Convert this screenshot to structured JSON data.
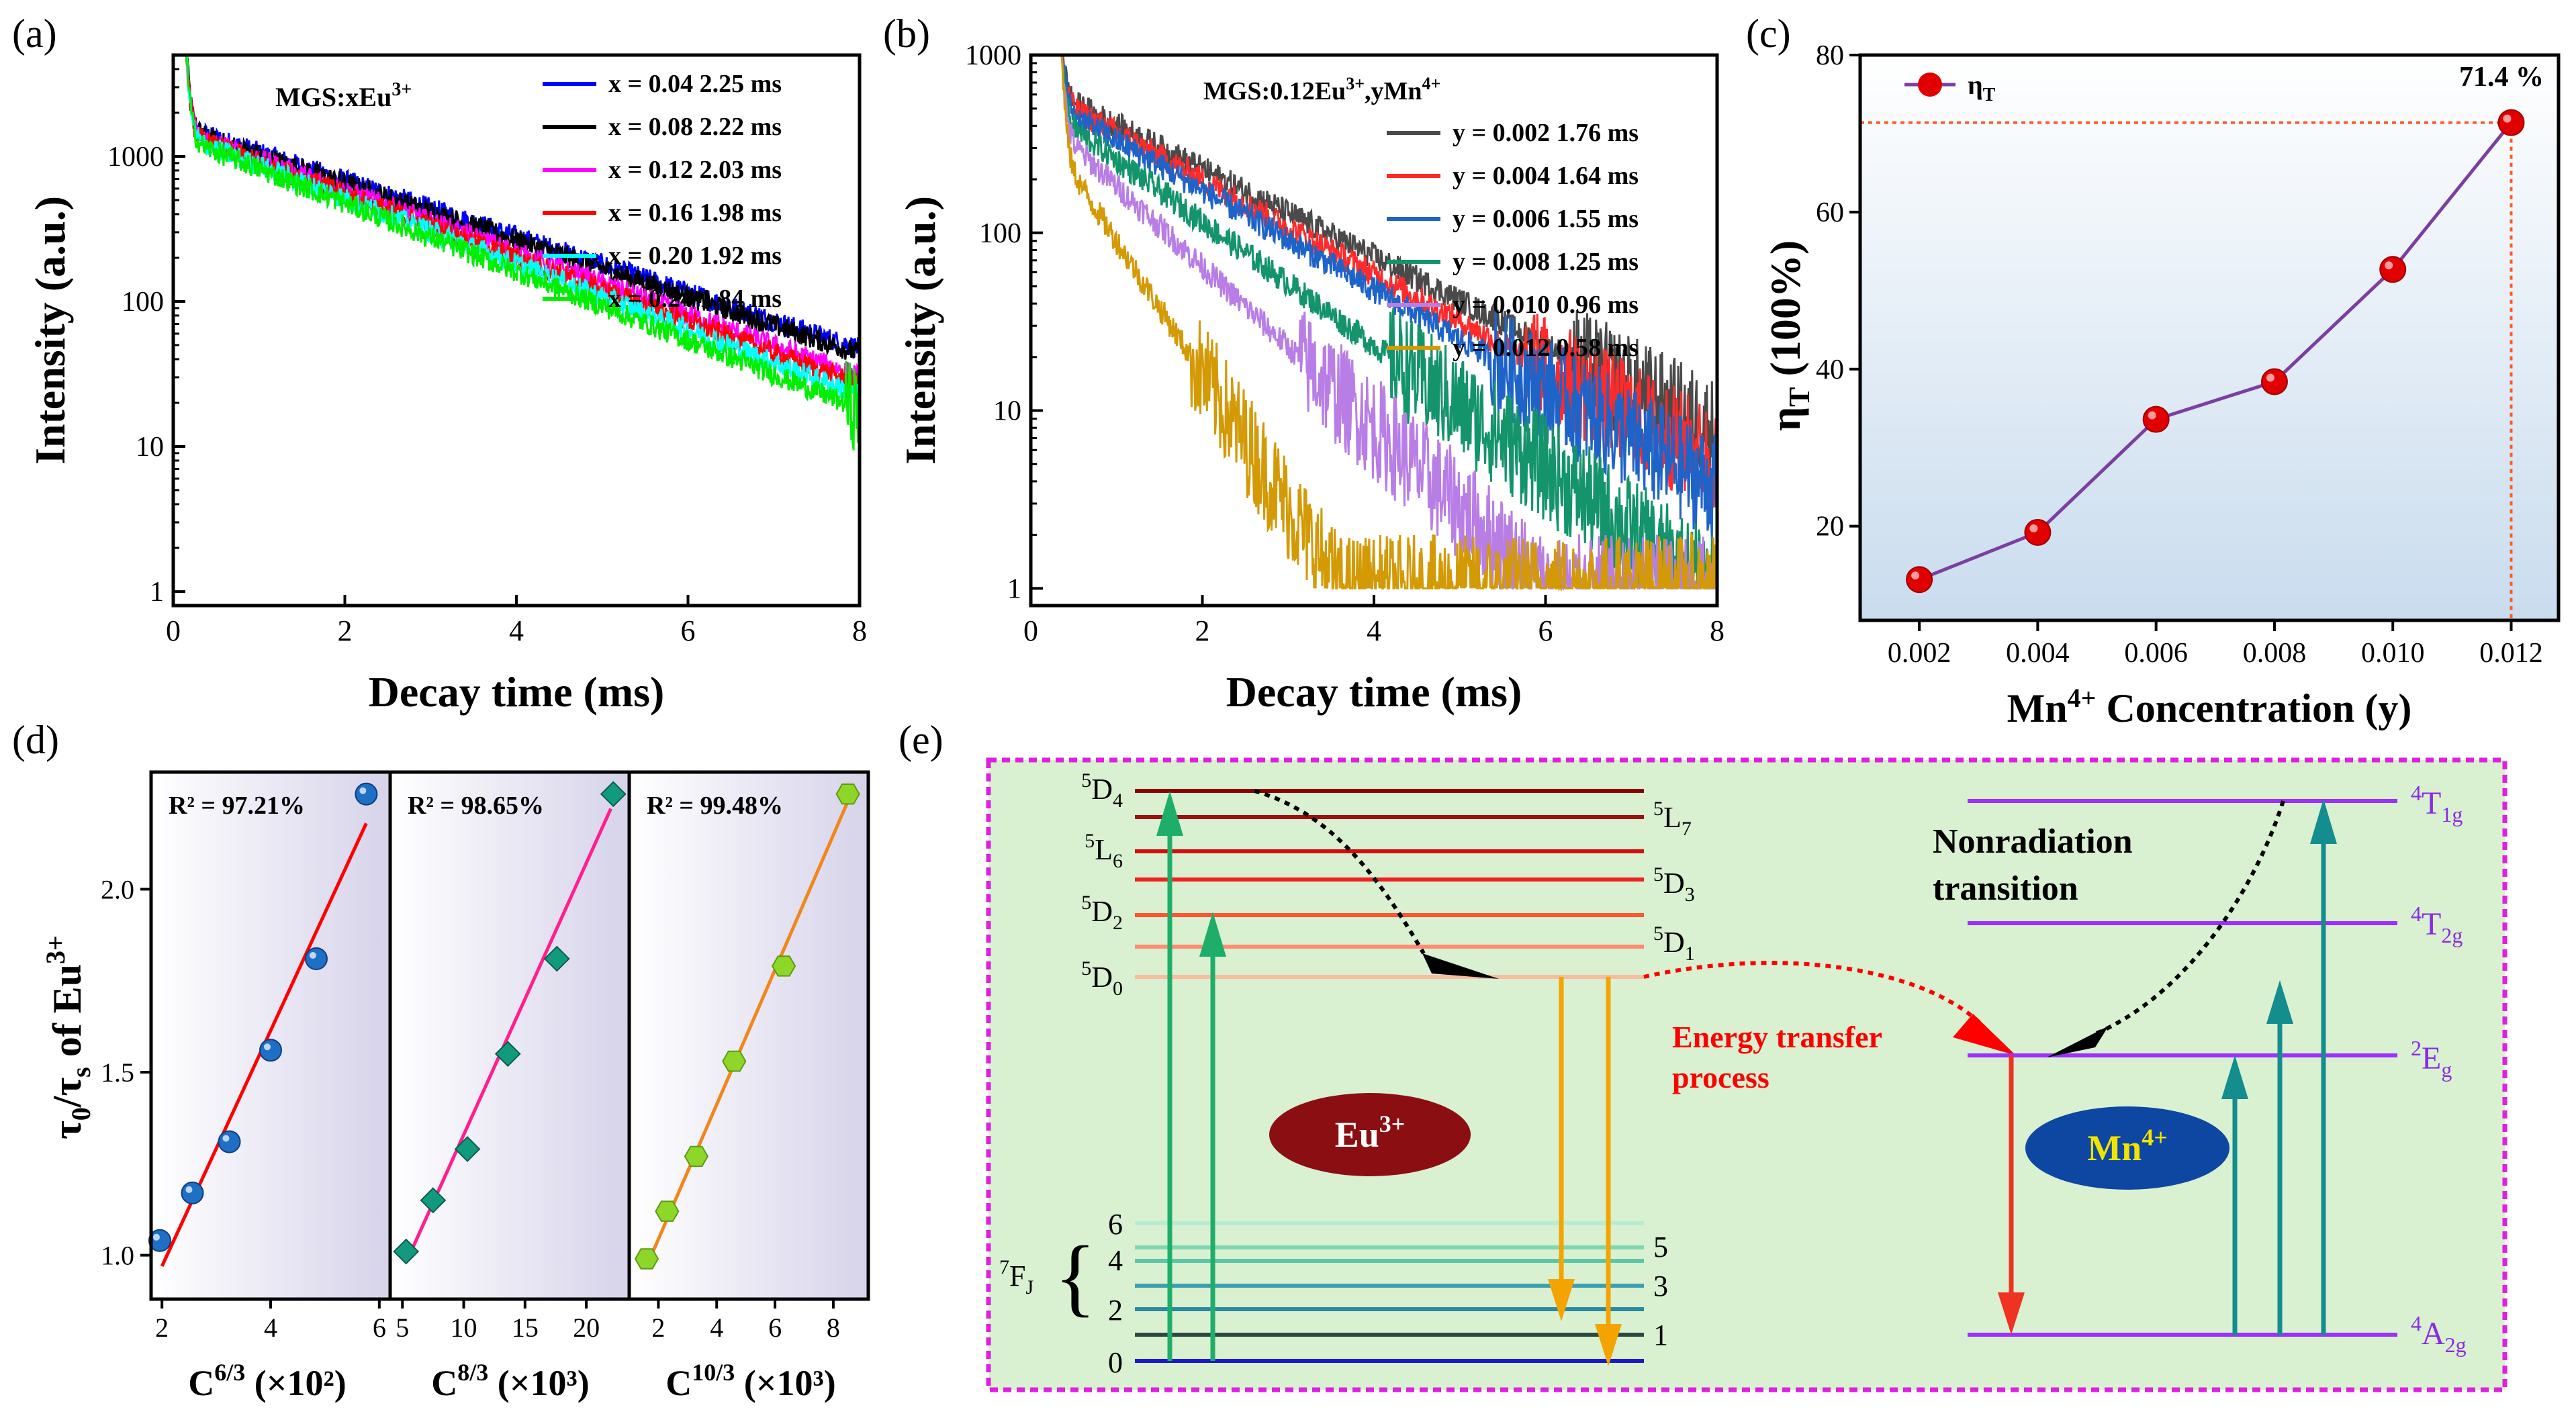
{
  "colors": {
    "eu_box": "#8b0f12",
    "mn_box": "#0d47a1",
    "dashed_border": "#e020e0",
    "panel_e_bg": "#d9f0d1",
    "panel_c_bg_top": "#ffffff",
    "panel_c_bg_bottom": "#cfe2f3",
    "purple_line": "#7b3fa0",
    "red_point": "#e00000",
    "orange_guide": "#ff5a1f",
    "green_arrow": "#1fae6a",
    "teal_arrow": "#138d8d",
    "orange_arrow": "#f4a400",
    "red_arrow": "#ee3322",
    "mn_level": "#9b30ff"
  },
  "chart_data": [
    {
      "id": "a",
      "type": "line",
      "panel_label": "(a)",
      "title": "MGS:xEu",
      "title_sup": "3+",
      "xlabel": "Decay time (ms)",
      "ylabel": "Intensity (a.u.)",
      "yscale": "log",
      "xlim": [
        0,
        8
      ],
      "ylim": [
        0.8,
        5000
      ],
      "xticks": [
        "0",
        "2",
        "4",
        "6",
        "8"
      ],
      "yticks": [
        "1",
        "10",
        "100",
        "1000"
      ],
      "series": [
        {
          "name": "x = 0.04  2.25 ms",
          "color": "#0000ff",
          "I0": 1550,
          "tau": 2.25
        },
        {
          "name": "x = 0.08  2.22 ms",
          "color": "#000000",
          "I0": 1500,
          "tau": 2.22
        },
        {
          "name": "x = 0.12  2.03 ms",
          "color": "#ff00ff",
          "I0": 1450,
          "tau": 2.03
        },
        {
          "name": "x = 0.16  1.98 ms",
          "color": "#ff0000",
          "I0": 1400,
          "tau": 1.98
        },
        {
          "name": "x = 0.20  1.92 ms",
          "color": "#00ffff",
          "I0": 1350,
          "tau": 1.92
        },
        {
          "name": "x = 0.24  1.84 ms",
          "color": "#00ee00",
          "I0": 1300,
          "tau": 1.84
        }
      ]
    },
    {
      "id": "b",
      "type": "line",
      "panel_label": "(b)",
      "title": "MGS:0.12Eu",
      "title_sup": "3+",
      "title_mid": ",yMn",
      "title_sup2": "4+",
      "xlabel": "Decay time (ms)",
      "ylabel": "Intensity (a.u.)",
      "yscale": "log",
      "xlim": [
        0,
        8
      ],
      "ylim": [
        0.8,
        1000
      ],
      "xticks": [
        "0",
        "2",
        "4",
        "6",
        "8"
      ],
      "yticks": [
        "1",
        "10",
        "100",
        "1000"
      ],
      "series": [
        {
          "name": "y = 0.002  1.76 ms",
          "color": "#4a4a4a",
          "I0": 600,
          "tau": 1.76
        },
        {
          "name": "y = 0.004  1.64 ms",
          "color": "#ff2b2b",
          "I0": 560,
          "tau": 1.64
        },
        {
          "name": "y = 0.006  1.55 ms",
          "color": "#1e64c8",
          "I0": 520,
          "tau": 1.55
        },
        {
          "name": "y = 0.008  1.25 ms",
          "color": "#13946b",
          "I0": 450,
          "tau": 1.25
        },
        {
          "name": "y = 0.010  0.96 ms",
          "color": "#b87ee6",
          "I0": 380,
          "tau": 0.96
        },
        {
          "name": "y = 0.012  0.58 ms",
          "color": "#d39a06",
          "I0": 300,
          "tau": 0.58
        }
      ]
    },
    {
      "id": "c",
      "type": "line",
      "panel_label": "(c)",
      "xlabel": "Mn",
      "xlabel_sup": "4+",
      "xlabel_rest": " Concentration (y)",
      "ylabel": "η",
      "ylabel_sub": "T",
      "ylabel_rest": " (100%)",
      "legend": "η",
      "legend_sub": "T",
      "annotation": "71.4 %",
      "xlim": [
        0.001,
        0.0128
      ],
      "ylim": [
        8,
        80
      ],
      "xticks": [
        "0.002",
        "0.004",
        "0.006",
        "0.008",
        "0.010",
        "0.012"
      ],
      "yticks": [
        "20",
        "40",
        "60",
        "80"
      ],
      "x": [
        0.002,
        0.004,
        0.006,
        0.008,
        0.01,
        0.012
      ],
      "y": [
        13.2,
        19.2,
        33.6,
        38.4,
        52.7,
        71.4
      ]
    },
    {
      "id": "d",
      "type": "scatter",
      "panel_label": "(d)",
      "ylabel": "τ",
      "ylabel_sub0": "0",
      "ylabel_mid": "/τ",
      "ylabel_sub1": "s",
      "ylabel_rest": " of Eu",
      "ylabel_sup": "3+",
      "ylim": [
        0.88,
        2.32
      ],
      "yticks": [
        "1.0",
        "1.5",
        "2.0"
      ],
      "subplots": [
        {
          "r2": "R² = 97.21%",
          "xlabel": "C",
          "xlabel_sup": "6/3",
          "xlabel_rest": " (×10²)",
          "xlim": [
            1.8,
            6.2
          ],
          "xticks": [
            "2",
            "4",
            "6"
          ],
          "x": [
            1.96,
            2.56,
            3.24,
            4.0,
            4.84,
            5.76
          ],
          "y": [
            1.04,
            1.17,
            1.31,
            1.56,
            1.81,
            2.26
          ],
          "fit": [
            [
              2.0,
              0.97
            ],
            [
              5.76,
              2.18
            ]
          ],
          "marker": "circle",
          "color": "#1f6fc5",
          "fit_color": "#ff0000"
        },
        {
          "r2": "R² = 98.65%",
          "xlabel": "C",
          "xlabel_sup": "8/3",
          "xlabel_rest": " (×10³)",
          "xlim": [
            4,
            23.5
          ],
          "xticks": [
            "5",
            "10",
            "15",
            "20"
          ],
          "x": [
            5.3,
            7.5,
            10.3,
            13.6,
            17.6,
            22.2
          ],
          "y": [
            1.01,
            1.15,
            1.29,
            1.55,
            1.81,
            2.26
          ],
          "fit": [
            [
              5.3,
              0.98
            ],
            [
              22.0,
              2.22
            ]
          ],
          "marker": "diamond",
          "color": "#129a7e",
          "fit_color": "#ff1f8e"
        },
        {
          "r2": "R² = 99.48%",
          "xlabel": "C",
          "xlabel_sup": "10/3",
          "xlabel_rest": " (×10³)",
          "xlim": [
            1,
            9.2
          ],
          "xticks": [
            "2",
            "4",
            "6",
            "8"
          ],
          "x": [
            1.6,
            2.3,
            3.3,
            4.6,
            6.3,
            8.5
          ],
          "y": [
            0.99,
            1.12,
            1.27,
            1.53,
            1.79,
            2.26
          ],
          "fit": [
            [
              1.6,
              0.97
            ],
            [
              8.5,
              2.24
            ]
          ],
          "marker": "hexagon",
          "color": "#8fd62a",
          "fit_color": "#f2861c"
        }
      ]
    }
  ],
  "panel_e": {
    "panel_label": "(e)",
    "eu_label": "Eu",
    "eu_sup": "3+",
    "mn_label": "Mn",
    "mn_sup": "4+",
    "nonrad_line1": "Nonradiation",
    "nonrad_line2": "transition",
    "et_line1": "Energy transfer",
    "et_line2": "process",
    "fj_label": "F",
    "fj_pre": "7",
    "fj_sub": "J",
    "brace": "{",
    "eu_left_levels": [
      {
        "pre": "5",
        "main": "D",
        "sub": "4"
      },
      {
        "pre": "5",
        "main": "L",
        "sub": "6"
      },
      {
        "pre": "5",
        "main": "D",
        "sub": "2"
      },
      {
        "pre": "5",
        "main": "D",
        "sub": "0"
      }
    ],
    "eu_right_levels": [
      {
        "pre": "5",
        "main": "L",
        "sub": "7"
      },
      {
        "pre": "5",
        "main": "D",
        "sub": "3"
      },
      {
        "pre": "5",
        "main": "D",
        "sub": "1"
      }
    ],
    "fj_left_nums": [
      "6",
      "4",
      "2",
      "0"
    ],
    "fj_right_nums": [
      "5",
      "3",
      "1"
    ],
    "mn_levels": [
      {
        "pre": "4",
        "main": "T",
        "sub": "1g"
      },
      {
        "pre": "4",
        "main": "T",
        "sub": "2g"
      },
      {
        "pre": "2",
        "main": "E",
        "sub": "g"
      },
      {
        "pre": "4",
        "main": "A",
        "sub": "2g"
      }
    ]
  }
}
